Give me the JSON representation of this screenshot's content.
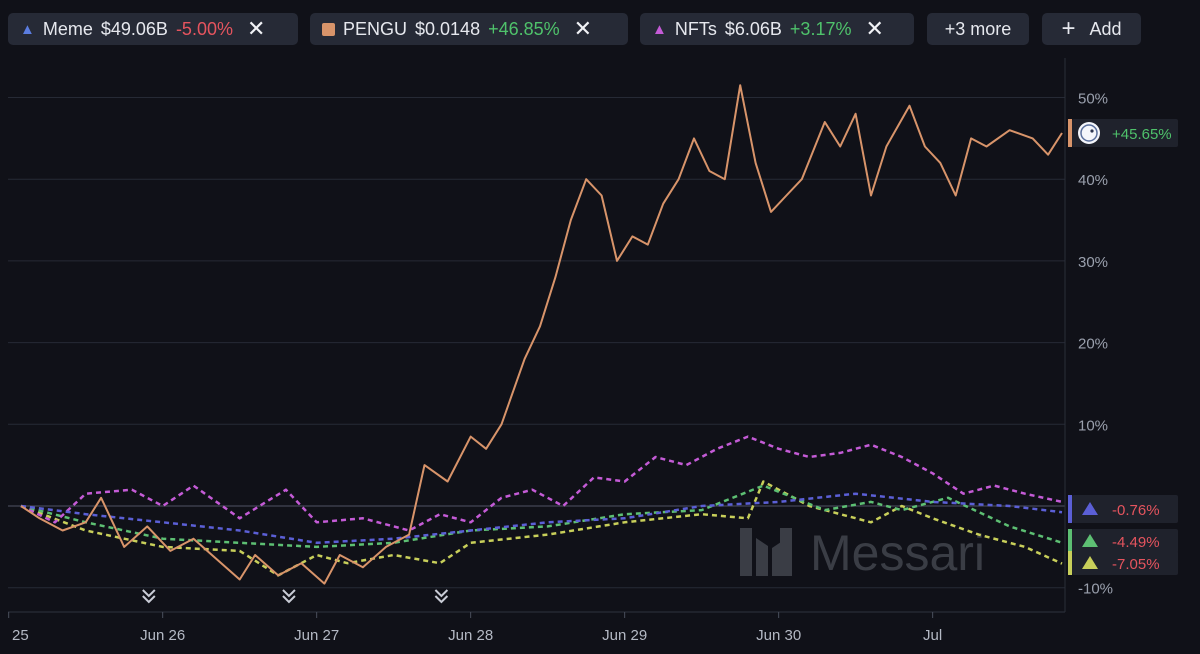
{
  "toolbar": {
    "assets": [
      {
        "icon": "triangle-icon",
        "color": "#5b7de0",
        "name": "Meme",
        "value": "$49.06B",
        "change": "-5.00%",
        "dir": "neg"
      },
      {
        "icon": "square-icon",
        "color": "#d8946a",
        "name": "PENGU",
        "value": "$0.0148",
        "change": "+46.85%",
        "dir": "pos"
      },
      {
        "icon": "triangle-icon",
        "color": "#c45bd6",
        "name": "NFTs",
        "value": "$6.06B",
        "change": "+3.17%",
        "dir": "pos"
      }
    ],
    "more_label": "+3 more",
    "add_label": "Add",
    "close_glyph": "✕",
    "plus_glyph": "+"
  },
  "watermark": "Messari",
  "end_labels": [
    {
      "series": "PENGU",
      "text": "+45.65%",
      "color": "#d8946a",
      "dir": "pos",
      "icon": "pengu-logo-icon"
    },
    {
      "series": "Meme",
      "text": "-0.76%",
      "color": "#5b5fd6",
      "dir": "neg",
      "icon": "triangle-icon"
    },
    {
      "series": "green",
      "text": "-4.49%",
      "color": "#5dbf73",
      "dir": "neg",
      "icon": "triangle-icon"
    },
    {
      "series": "yellow",
      "text": "-7.05%",
      "color": "#c8cf5a",
      "dir": "neg",
      "icon": "triangle-icon"
    }
  ],
  "chart_data": {
    "type": "line",
    "x_unit": "days from Jun 25 00:00",
    "x_range": [
      0.08,
      6.84
    ],
    "xticks": [
      {
        "label": "25",
        "x": 0.0
      },
      {
        "label": "Jun 26",
        "x": 1.0
      },
      {
        "label": "Jun 27",
        "x": 2.0
      },
      {
        "label": "Jun 28",
        "x": 3.0
      },
      {
        "label": "Jun 29",
        "x": 4.0
      },
      {
        "label": "Jun 30",
        "x": 5.0
      },
      {
        "label": "Jul",
        "x": 6.0
      }
    ],
    "ylim": [
      -10,
      55
    ],
    "yticks": [
      -10,
      10,
      20,
      30,
      40,
      50
    ],
    "ytick_labels": [
      "-10%",
      "10%",
      "20%",
      "30%",
      "40%",
      "50%"
    ],
    "zero_line": 0,
    "event_markers": [
      0.91,
      1.82,
      2.81
    ],
    "series": [
      {
        "name": "PENGU",
        "color": "#d8946a",
        "style": "solid",
        "points": [
          [
            0.08,
            0
          ],
          [
            0.2,
            -1.5
          ],
          [
            0.35,
            -3
          ],
          [
            0.5,
            -2
          ],
          [
            0.6,
            1
          ],
          [
            0.75,
            -5
          ],
          [
            0.9,
            -2.5
          ],
          [
            1.05,
            -5.5
          ],
          [
            1.2,
            -4
          ],
          [
            1.35,
            -6.5
          ],
          [
            1.5,
            -9
          ],
          [
            1.6,
            -6
          ],
          [
            1.75,
            -8.5
          ],
          [
            1.9,
            -7
          ],
          [
            2.05,
            -9.5
          ],
          [
            2.15,
            -6
          ],
          [
            2.3,
            -7.5
          ],
          [
            2.45,
            -5
          ],
          [
            2.6,
            -3.5
          ],
          [
            2.7,
            5
          ],
          [
            2.85,
            3
          ],
          [
            3.0,
            8.5
          ],
          [
            3.1,
            7
          ],
          [
            3.2,
            10
          ],
          [
            3.35,
            18
          ],
          [
            3.45,
            22
          ],
          [
            3.55,
            28
          ],
          [
            3.65,
            35
          ],
          [
            3.75,
            40
          ],
          [
            3.85,
            38
          ],
          [
            3.95,
            30
          ],
          [
            4.05,
            33
          ],
          [
            4.15,
            32
          ],
          [
            4.25,
            37
          ],
          [
            4.35,
            40
          ],
          [
            4.45,
            45
          ],
          [
            4.55,
            41
          ],
          [
            4.65,
            40
          ],
          [
            4.75,
            51.5
          ],
          [
            4.85,
            42
          ],
          [
            4.95,
            36
          ],
          [
            5.05,
            38
          ],
          [
            5.15,
            40
          ],
          [
            5.3,
            47
          ],
          [
            5.4,
            44
          ],
          [
            5.5,
            48
          ],
          [
            5.6,
            38
          ],
          [
            5.7,
            44
          ],
          [
            5.85,
            49
          ],
          [
            5.95,
            44
          ],
          [
            6.05,
            42
          ],
          [
            6.15,
            38
          ],
          [
            6.25,
            45
          ],
          [
            6.35,
            44
          ],
          [
            6.5,
            46
          ],
          [
            6.65,
            45
          ],
          [
            6.75,
            43
          ],
          [
            6.84,
            45.65
          ]
        ]
      },
      {
        "name": "Meme",
        "color": "#5b5fd6",
        "style": "dashed",
        "points": [
          [
            0.08,
            0
          ],
          [
            0.5,
            -1
          ],
          [
            1.0,
            -2
          ],
          [
            1.5,
            -3
          ],
          [
            2.0,
            -4.5
          ],
          [
            2.5,
            -4
          ],
          [
            3.0,
            -3
          ],
          [
            3.5,
            -2
          ],
          [
            4.0,
            -1.5
          ],
          [
            4.5,
            0
          ],
          [
            5.0,
            0.5
          ],
          [
            5.5,
            1.5
          ],
          [
            6.0,
            0.5
          ],
          [
            6.5,
            0
          ],
          [
            6.84,
            -0.76
          ]
        ]
      },
      {
        "name": "NFTs",
        "color": "#c45bd6",
        "style": "dashed",
        "points": [
          [
            0.08,
            0
          ],
          [
            0.3,
            -2
          ],
          [
            0.5,
            1.5
          ],
          [
            0.8,
            2
          ],
          [
            1.0,
            0
          ],
          [
            1.2,
            2.5
          ],
          [
            1.5,
            -1.5
          ],
          [
            1.8,
            2
          ],
          [
            2.0,
            -2
          ],
          [
            2.3,
            -1.5
          ],
          [
            2.6,
            -3
          ],
          [
            2.8,
            -1
          ],
          [
            3.0,
            -2
          ],
          [
            3.2,
            1
          ],
          [
            3.4,
            2
          ],
          [
            3.6,
            0
          ],
          [
            3.8,
            3.5
          ],
          [
            4.0,
            3
          ],
          [
            4.2,
            6
          ],
          [
            4.4,
            5
          ],
          [
            4.6,
            7
          ],
          [
            4.8,
            8.5
          ],
          [
            5.0,
            7
          ],
          [
            5.2,
            6
          ],
          [
            5.4,
            6.5
          ],
          [
            5.6,
            7.5
          ],
          [
            5.8,
            6
          ],
          [
            6.0,
            4
          ],
          [
            6.2,
            1.5
          ],
          [
            6.4,
            2.5
          ],
          [
            6.6,
            1.5
          ],
          [
            6.84,
            0.5
          ]
        ]
      },
      {
        "name": "green",
        "color": "#5dbf73",
        "style": "dashed",
        "points": [
          [
            0.08,
            0
          ],
          [
            0.5,
            -2
          ],
          [
            1.0,
            -4
          ],
          [
            1.5,
            -4.5
          ],
          [
            2.0,
            -5
          ],
          [
            2.5,
            -4.5
          ],
          [
            3.0,
            -3
          ],
          [
            3.5,
            -2.5
          ],
          [
            4.0,
            -1
          ],
          [
            4.5,
            -0.5
          ],
          [
            4.9,
            2.5
          ],
          [
            5.3,
            -0.5
          ],
          [
            5.6,
            0.5
          ],
          [
            5.8,
            -0.5
          ],
          [
            6.1,
            1
          ],
          [
            6.5,
            -2.5
          ],
          [
            6.84,
            -4.49
          ]
        ]
      },
      {
        "name": "yellow",
        "color": "#c8cf5a",
        "style": "dashed",
        "points": [
          [
            0.08,
            0
          ],
          [
            0.5,
            -3
          ],
          [
            1.0,
            -5
          ],
          [
            1.5,
            -5.5
          ],
          [
            1.75,
            -8.5
          ],
          [
            2.0,
            -6
          ],
          [
            2.2,
            -7
          ],
          [
            2.5,
            -6
          ],
          [
            2.8,
            -7
          ],
          [
            3.0,
            -4.5
          ],
          [
            3.5,
            -3.5
          ],
          [
            4.0,
            -2
          ],
          [
            4.5,
            -1
          ],
          [
            4.8,
            -1.5
          ],
          [
            4.9,
            3
          ],
          [
            5.2,
            0
          ],
          [
            5.6,
            -2
          ],
          [
            5.8,
            0
          ],
          [
            6.0,
            -1.5
          ],
          [
            6.3,
            -3.5
          ],
          [
            6.6,
            -5
          ],
          [
            6.84,
            -7.05
          ]
        ]
      }
    ]
  }
}
